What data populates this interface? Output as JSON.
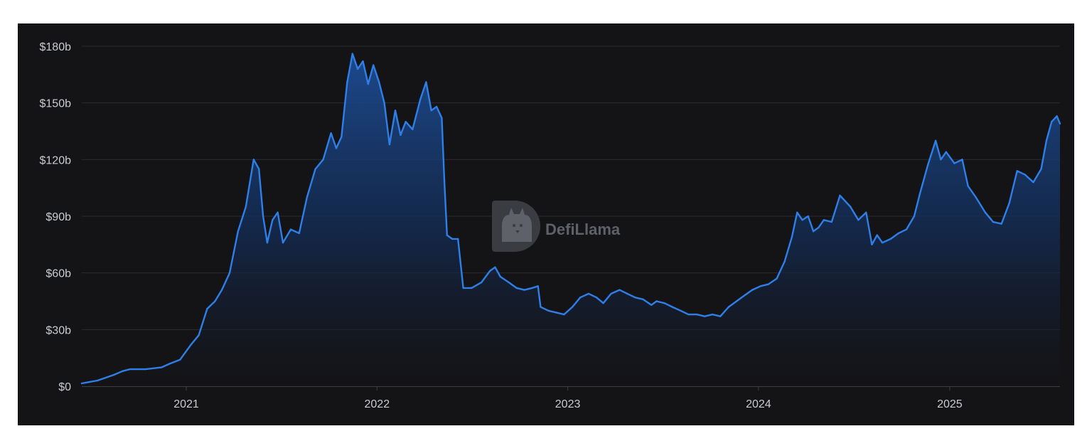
{
  "watermark": {
    "text": "DefiLlama",
    "logo": "llama-logo-icon"
  },
  "chart_data": {
    "type": "area",
    "title": "",
    "xlabel": "",
    "ylabel": "",
    "ylim": [
      0,
      180
    ],
    "y_unit": "billion USD",
    "y_ticks": [
      {
        "value": 0,
        "label": "$0"
      },
      {
        "value": 30,
        "label": "$30b"
      },
      {
        "value": 60,
        "label": "$60b"
      },
      {
        "value": 90,
        "label": "$90b"
      },
      {
        "value": 120,
        "label": "$120b"
      },
      {
        "value": 150,
        "label": "$150b"
      },
      {
        "value": 180,
        "label": "$180b"
      }
    ],
    "x_range": [
      "2020-06-15",
      "2025-07-31"
    ],
    "x_ticks": [
      {
        "date": "2021-01-01",
        "label": "2021"
      },
      {
        "date": "2022-01-01",
        "label": "2022"
      },
      {
        "date": "2023-01-01",
        "label": "2023"
      },
      {
        "date": "2024-01-01",
        "label": "2024"
      },
      {
        "date": "2025-01-01",
        "label": "2025"
      }
    ],
    "grid": true,
    "legend": "none",
    "colors": {
      "line": "#2f7fe8",
      "fill_top": "#1d4f9a",
      "background": "#141417",
      "grid": "#2a2c31"
    },
    "series": [
      {
        "points": [
          [
            "2020-06-15",
            1.5
          ],
          [
            "2020-07-15",
            3
          ],
          [
            "2020-08-15",
            6
          ],
          [
            "2020-09-01",
            8
          ],
          [
            "2020-09-15",
            9
          ],
          [
            "2020-10-15",
            9
          ],
          [
            "2020-11-15",
            10
          ],
          [
            "2020-12-01",
            12
          ],
          [
            "2020-12-20",
            14
          ],
          [
            "2021-01-10",
            22
          ],
          [
            "2021-01-25",
            27
          ],
          [
            "2021-02-10",
            41
          ],
          [
            "2021-02-25",
            45
          ],
          [
            "2021-03-10",
            51
          ],
          [
            "2021-03-25",
            60
          ],
          [
            "2021-04-10",
            82
          ],
          [
            "2021-04-25",
            95
          ],
          [
            "2021-05-10",
            120
          ],
          [
            "2021-05-20",
            115
          ],
          [
            "2021-05-28",
            90
          ],
          [
            "2021-06-05",
            76
          ],
          [
            "2021-06-15",
            88
          ],
          [
            "2021-06-25",
            92
          ],
          [
            "2021-07-05",
            76
          ],
          [
            "2021-07-20",
            83
          ],
          [
            "2021-08-05",
            81
          ],
          [
            "2021-08-20",
            100
          ],
          [
            "2021-09-05",
            115
          ],
          [
            "2021-09-20",
            120
          ],
          [
            "2021-10-05",
            134
          ],
          [
            "2021-10-15",
            126
          ],
          [
            "2021-10-25",
            132
          ],
          [
            "2021-11-05",
            161
          ],
          [
            "2021-11-15",
            176
          ],
          [
            "2021-11-25",
            168
          ],
          [
            "2021-12-05",
            172
          ],
          [
            "2021-12-15",
            160
          ],
          [
            "2021-12-25",
            170
          ],
          [
            "2022-01-05",
            161
          ],
          [
            "2022-01-15",
            150
          ],
          [
            "2022-01-25",
            128
          ],
          [
            "2022-02-05",
            146
          ],
          [
            "2022-02-15",
            133
          ],
          [
            "2022-02-25",
            140
          ],
          [
            "2022-03-10",
            136
          ],
          [
            "2022-03-25",
            152
          ],
          [
            "2022-04-05",
            161
          ],
          [
            "2022-04-15",
            146
          ],
          [
            "2022-04-25",
            148
          ],
          [
            "2022-05-05",
            142
          ],
          [
            "2022-05-10",
            108
          ],
          [
            "2022-05-15",
            80
          ],
          [
            "2022-05-25",
            78
          ],
          [
            "2022-06-05",
            78
          ],
          [
            "2022-06-15",
            52
          ],
          [
            "2022-07-01",
            52
          ],
          [
            "2022-07-20",
            55
          ],
          [
            "2022-08-05",
            61
          ],
          [
            "2022-08-15",
            63
          ],
          [
            "2022-08-25",
            58
          ],
          [
            "2022-09-10",
            55
          ],
          [
            "2022-09-25",
            52
          ],
          [
            "2022-10-10",
            51
          ],
          [
            "2022-10-25",
            52
          ],
          [
            "2022-11-05",
            53
          ],
          [
            "2022-11-10",
            42
          ],
          [
            "2022-11-25",
            40
          ],
          [
            "2022-12-10",
            39
          ],
          [
            "2022-12-25",
            38
          ],
          [
            "2023-01-10",
            42
          ],
          [
            "2023-01-25",
            47
          ],
          [
            "2023-02-10",
            49
          ],
          [
            "2023-02-25",
            47
          ],
          [
            "2023-03-10",
            44
          ],
          [
            "2023-03-25",
            49
          ],
          [
            "2023-04-10",
            51
          ],
          [
            "2023-04-25",
            49
          ],
          [
            "2023-05-10",
            47
          ],
          [
            "2023-05-25",
            46
          ],
          [
            "2023-06-10",
            43
          ],
          [
            "2023-06-20",
            45
          ],
          [
            "2023-07-05",
            44
          ],
          [
            "2023-07-20",
            42
          ],
          [
            "2023-08-05",
            40
          ],
          [
            "2023-08-20",
            38
          ],
          [
            "2023-09-05",
            38
          ],
          [
            "2023-09-20",
            37
          ],
          [
            "2023-10-05",
            38
          ],
          [
            "2023-10-20",
            37
          ],
          [
            "2023-11-05",
            42
          ],
          [
            "2023-11-20",
            45
          ],
          [
            "2023-12-05",
            48
          ],
          [
            "2023-12-20",
            51
          ],
          [
            "2024-01-05",
            53
          ],
          [
            "2024-01-20",
            54
          ],
          [
            "2024-02-05",
            57
          ],
          [
            "2024-02-20",
            66
          ],
          [
            "2024-03-05",
            79
          ],
          [
            "2024-03-15",
            92
          ],
          [
            "2024-03-25",
            88
          ],
          [
            "2024-04-05",
            90
          ],
          [
            "2024-04-15",
            82
          ],
          [
            "2024-04-25",
            84
          ],
          [
            "2024-05-05",
            88
          ],
          [
            "2024-05-20",
            87
          ],
          [
            "2024-06-05",
            101
          ],
          [
            "2024-06-15",
            98
          ],
          [
            "2024-06-25",
            95
          ],
          [
            "2024-07-10",
            88
          ],
          [
            "2024-07-25",
            92
          ],
          [
            "2024-08-05",
            75
          ],
          [
            "2024-08-15",
            80
          ],
          [
            "2024-08-25",
            76
          ],
          [
            "2024-09-10",
            78
          ],
          [
            "2024-09-25",
            81
          ],
          [
            "2024-10-10",
            83
          ],
          [
            "2024-10-25",
            90
          ],
          [
            "2024-11-05",
            102
          ],
          [
            "2024-11-20",
            117
          ],
          [
            "2024-12-05",
            130
          ],
          [
            "2024-12-15",
            120
          ],
          [
            "2024-12-25",
            124
          ],
          [
            "2025-01-10",
            118
          ],
          [
            "2025-01-25",
            120
          ],
          [
            "2025-02-05",
            106
          ],
          [
            "2025-02-20",
            100
          ],
          [
            "2025-03-10",
            92
          ],
          [
            "2025-03-25",
            87
          ],
          [
            "2025-04-10",
            86
          ],
          [
            "2025-04-25",
            97
          ],
          [
            "2025-05-10",
            114
          ],
          [
            "2025-05-25",
            112
          ],
          [
            "2025-06-10",
            108
          ],
          [
            "2025-06-25",
            115
          ],
          [
            "2025-07-05",
            130
          ],
          [
            "2025-07-15",
            140
          ],
          [
            "2025-07-25",
            143
          ],
          [
            "2025-07-31",
            139
          ]
        ]
      }
    ]
  }
}
